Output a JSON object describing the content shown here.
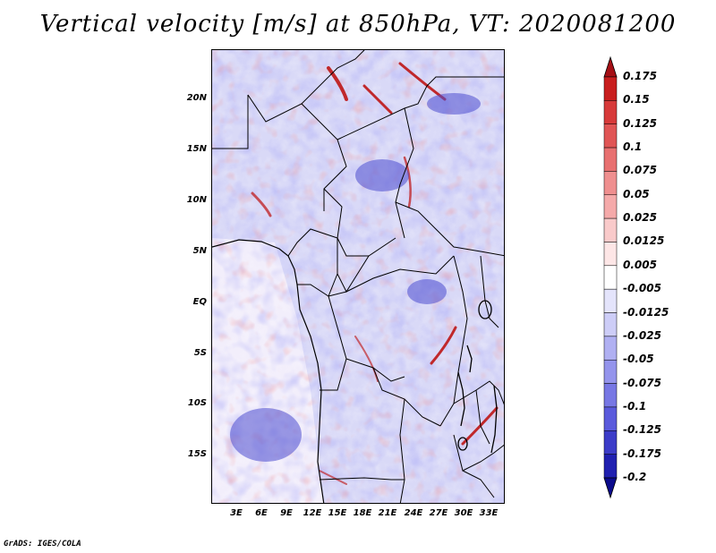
{
  "title": "Vertical velocity [m/s] at 850hPa, VT: 2020081200",
  "footer": "GrADS: IGES/COLA",
  "map": {
    "lat_labels": [
      "20N",
      "15N",
      "10N",
      "5N",
      "EQ",
      "5S",
      "10S",
      "15S"
    ],
    "lon_labels": [
      "3E",
      "6E",
      "9E",
      "12E",
      "15E",
      "18E",
      "21E",
      "24E",
      "27E",
      "30E",
      "33E"
    ]
  },
  "colorbar": {
    "labels": [
      "0.175",
      "0.15",
      "0.125",
      "0.1",
      "0.075",
      "0.05",
      "0.025",
      "0.0125",
      "0.005",
      "-0.005",
      "-0.0125",
      "-0.025",
      "-0.05",
      "-0.075",
      "-0.1",
      "-0.125",
      "-0.175",
      "-0.2"
    ],
    "colors": [
      "#a50f15",
      "#c81e1e",
      "#d73a3a",
      "#e05555",
      "#e87070",
      "#ef8f8f",
      "#f5aaaa",
      "#f9caca",
      "#fde6e6",
      "#ffffff",
      "#e4e4fb",
      "#cdcdf7",
      "#b0b0f2",
      "#9494ec",
      "#7777e4",
      "#5a5adc",
      "#3c3cc8",
      "#2020b0",
      "#0b0b8c"
    ]
  }
}
